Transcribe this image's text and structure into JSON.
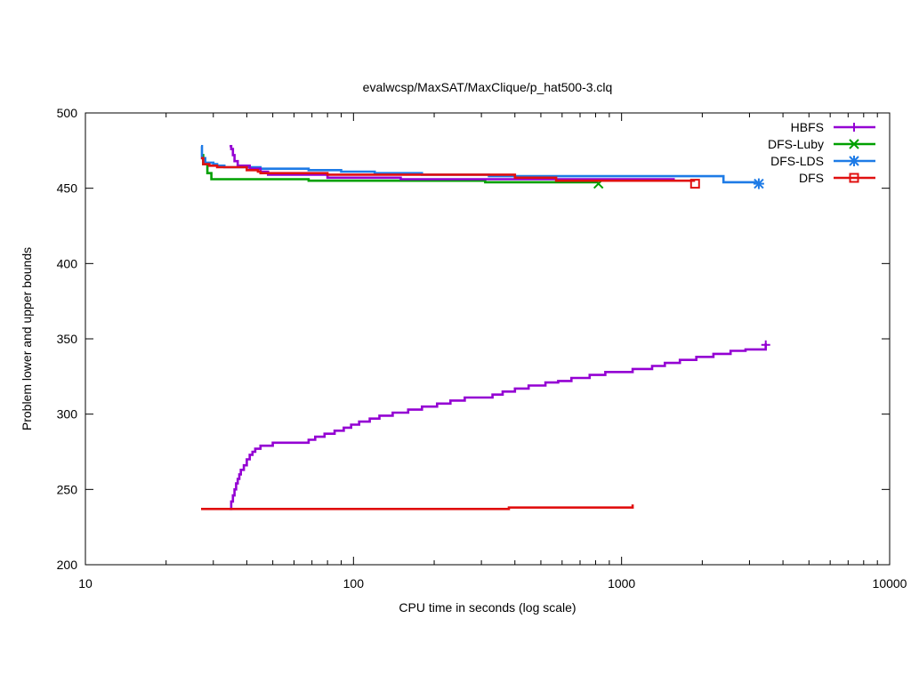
{
  "chart_data": {
    "type": "line",
    "title": "evalwcsp/MaxSAT/MaxClique/p_hat500-3.clq",
    "xlabel": "CPU time in seconds (log scale)",
    "ylabel": "Problem lower and upper bounds",
    "xscale": "log",
    "xlim": [
      10,
      10000
    ],
    "ylim": [
      200,
      500
    ],
    "xticks": [
      10,
      100,
      1000,
      10000
    ],
    "xtick_labels": [
      "10",
      "100",
      "1000",
      "10000"
    ],
    "yticks": [
      200,
      250,
      300,
      350,
      400,
      450,
      500
    ],
    "ytick_labels": [
      "200",
      "250",
      "300",
      "350",
      "400",
      "450",
      "500"
    ],
    "grid": false,
    "legend_position": "top-right",
    "series": [
      {
        "name": "HBFS",
        "color": "#9400d3",
        "marker": "plus",
        "marker_at": [
          3450,
          346
        ],
        "upper": [
          [
            34.5,
            478
          ],
          [
            35,
            476
          ],
          [
            35.5,
            472
          ],
          [
            36,
            468
          ],
          [
            37,
            465
          ],
          [
            40,
            465
          ],
          [
            41,
            463
          ],
          [
            45,
            461
          ],
          [
            48,
            459
          ],
          [
            80,
            459
          ],
          [
            80,
            457
          ],
          [
            150,
            457
          ],
          [
            150,
            456
          ],
          [
            1580,
            456
          ]
        ],
        "lower": [
          [
            34.5,
            237
          ],
          [
            35,
            242
          ],
          [
            35.5,
            246
          ],
          [
            36,
            250
          ],
          [
            36.5,
            254
          ],
          [
            37,
            257
          ],
          [
            37.5,
            260
          ],
          [
            38,
            263
          ],
          [
            39,
            266
          ],
          [
            40,
            270
          ],
          [
            41,
            273
          ],
          [
            42,
            275
          ],
          [
            43,
            277
          ],
          [
            45,
            279
          ],
          [
            50,
            281
          ],
          [
            68,
            281
          ],
          [
            68,
            283
          ],
          [
            72,
            285
          ],
          [
            78,
            287
          ],
          [
            85,
            289
          ],
          [
            92,
            291
          ],
          [
            98,
            293
          ],
          [
            105,
            295
          ],
          [
            115,
            297
          ],
          [
            125,
            299
          ],
          [
            140,
            301
          ],
          [
            160,
            303
          ],
          [
            180,
            305
          ],
          [
            205,
            307
          ],
          [
            230,
            309
          ],
          [
            260,
            311
          ],
          [
            330,
            311
          ],
          [
            330,
            313
          ],
          [
            360,
            315
          ],
          [
            400,
            317
          ],
          [
            450,
            319
          ],
          [
            520,
            321
          ],
          [
            580,
            322
          ],
          [
            650,
            324
          ],
          [
            760,
            326
          ],
          [
            870,
            328
          ],
          [
            1100,
            330
          ],
          [
            1300,
            332
          ],
          [
            1450,
            334
          ],
          [
            1650,
            336
          ],
          [
            1900,
            338
          ],
          [
            2200,
            340
          ],
          [
            2550,
            342
          ],
          [
            2900,
            343
          ],
          [
            3450,
            344
          ],
          [
            3450,
            347
          ]
        ]
      },
      {
        "name": "DFS-Luby",
        "color": "#00a000",
        "marker": "x",
        "marker_at": [
          820,
          453
        ],
        "upper": [
          [
            27,
            472
          ],
          [
            27.5,
            466
          ],
          [
            28.5,
            460
          ],
          [
            29.5,
            456
          ],
          [
            68,
            456
          ],
          [
            68,
            455
          ],
          [
            310,
            455
          ],
          [
            310,
            454
          ],
          [
            820,
            454
          ]
        ]
      },
      {
        "name": "DFS-LDS",
        "color": "#1e7be6",
        "marker": "star",
        "marker_at": [
          3250,
          453
        ],
        "upper": [
          [
            27,
            478
          ],
          [
            27.2,
            470
          ],
          [
            28,
            467
          ],
          [
            30,
            466
          ],
          [
            31,
            465
          ],
          [
            33,
            464
          ],
          [
            45,
            464
          ],
          [
            45,
            463
          ],
          [
            68,
            463
          ],
          [
            68,
            462
          ],
          [
            90,
            462
          ],
          [
            90,
            461
          ],
          [
            120,
            461
          ],
          [
            120,
            460
          ],
          [
            180,
            460
          ],
          [
            180,
            459
          ],
          [
            320,
            459
          ],
          [
            320,
            458
          ],
          [
            2400,
            458
          ],
          [
            2400,
            454
          ],
          [
            3250,
            454
          ]
        ]
      },
      {
        "name": "DFS",
        "color": "#e01010",
        "marker": "square",
        "marker_at": [
          1880,
          453
        ],
        "upper": [
          [
            27,
            470
          ],
          [
            27.5,
            466
          ],
          [
            29,
            465
          ],
          [
            31,
            464
          ],
          [
            40,
            464
          ],
          [
            40,
            462
          ],
          [
            44,
            461
          ],
          [
            45,
            460
          ],
          [
            80,
            460
          ],
          [
            80,
            459
          ],
          [
            400,
            459
          ],
          [
            400,
            457
          ],
          [
            570,
            457
          ],
          [
            570,
            455
          ],
          [
            1880,
            455
          ]
        ],
        "lower": [
          [
            27,
            237
          ],
          [
            380,
            237
          ],
          [
            380,
            238
          ],
          [
            1100,
            238
          ],
          [
            1100,
            240
          ]
        ]
      }
    ]
  }
}
